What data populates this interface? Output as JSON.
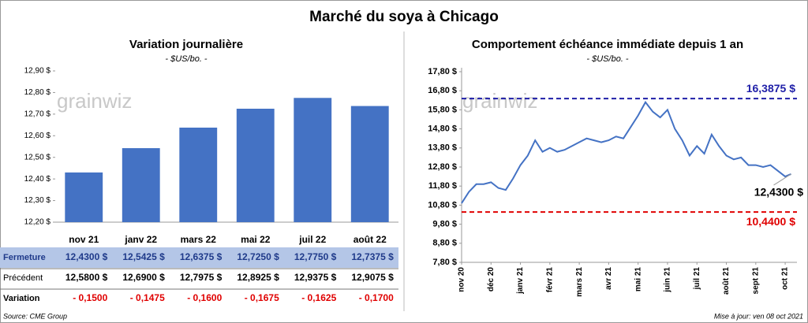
{
  "title": "Marché du soya à Chicago",
  "watermark": "grainwiz",
  "chart_data": [
    {
      "type": "bar",
      "title": "Variation  journalière",
      "subtitle": "- $US/bo. -",
      "categories": [
        "nov 21",
        "janv 22",
        "mars 22",
        "mai 22",
        "juil 22",
        "août 22"
      ],
      "series": [
        {
          "name": "Fermeture",
          "color": "#4472c4",
          "values": [
            12.43,
            12.5425,
            12.6375,
            12.725,
            12.775,
            12.7375
          ],
          "value_labels": [
            "12,4300 $",
            "12,5425 $",
            "12,6375 $",
            "12,7250 $",
            "12,7750 $",
            "12,7375 $"
          ]
        }
      ],
      "ylim": [
        12.2,
        12.9
      ],
      "yticks": [
        {
          "value": 12.2,
          "label": "12,20 $"
        },
        {
          "value": 12.3,
          "label": "12,30 $"
        },
        {
          "value": 12.4,
          "label": "12,40 $"
        },
        {
          "value": 12.5,
          "label": "12,50 $"
        },
        {
          "value": 12.6,
          "label": "12,60 $"
        },
        {
          "value": 12.7,
          "label": "12,70 $"
        },
        {
          "value": 12.8,
          "label": "12,80 $"
        },
        {
          "value": 12.9,
          "label": "12,90 $"
        }
      ]
    },
    {
      "type": "line",
      "title": "Comportement  échéance immédiate depuis 1 an",
      "subtitle": "- $US/bo. -",
      "x": [
        0,
        0.25,
        0.5,
        0.75,
        1,
        1.25,
        1.5,
        1.75,
        2,
        2.25,
        2.5,
        2.75,
        3,
        3.25,
        3.5,
        3.75,
        4,
        4.25,
        4.5,
        4.75,
        5,
        5.25,
        5.5,
        5.75,
        6,
        6.25,
        6.5,
        6.75,
        7,
        7.25,
        7.5,
        7.75,
        8,
        8.25,
        8.5,
        8.75,
        9,
        9.25,
        9.5,
        9.75,
        10,
        10.25,
        10.5,
        10.75,
        11,
        11.2
      ],
      "series": [
        {
          "color": "#4472c4",
          "values": [
            10.9,
            11.5,
            11.9,
            11.9,
            12.0,
            11.7,
            11.6,
            12.2,
            12.9,
            13.4,
            14.2,
            13.6,
            13.8,
            13.6,
            13.7,
            13.9,
            14.1,
            14.3,
            14.2,
            14.1,
            14.2,
            14.4,
            14.3,
            14.9,
            15.5,
            16.2,
            15.7,
            15.4,
            15.8,
            14.8,
            14.2,
            13.4,
            13.9,
            13.5,
            14.5,
            13.9,
            13.4,
            13.2,
            13.3,
            12.9,
            12.9,
            12.8,
            12.9,
            12.6,
            12.3,
            12.43
          ]
        }
      ],
      "xlim": [
        0,
        11.4
      ],
      "xticks": [
        {
          "value": 0,
          "label": "nov 20"
        },
        {
          "value": 1,
          "label": "déc 20"
        },
        {
          "value": 2,
          "label": "janv 21"
        },
        {
          "value": 3,
          "label": "févr 21"
        },
        {
          "value": 4,
          "label": "mars 21"
        },
        {
          "value": 5,
          "label": "avr 21"
        },
        {
          "value": 6,
          "label": "mai 21"
        },
        {
          "value": 7,
          "label": "juin 21"
        },
        {
          "value": 8,
          "label": "juil 21"
        },
        {
          "value": 9,
          "label": "août 21"
        },
        {
          "value": 10,
          "label": "sept 21"
        },
        {
          "value": 11,
          "label": "oct 21"
        }
      ],
      "ylim": [
        7.8,
        17.8
      ],
      "yticks": [
        {
          "value": 7.8,
          "label": "7,80 $"
        },
        {
          "value": 8.8,
          "label": "8,80 $"
        },
        {
          "value": 9.8,
          "label": "9,80 $"
        },
        {
          "value": 10.8,
          "label": "10,80 $"
        },
        {
          "value": 11.8,
          "label": "11,80 $"
        },
        {
          "value": 12.8,
          "label": "12,80 $"
        },
        {
          "value": 13.8,
          "label": "13,80 $"
        },
        {
          "value": 14.8,
          "label": "14,80 $"
        },
        {
          "value": 15.8,
          "label": "15,80 $"
        },
        {
          "value": 16.8,
          "label": "16,80 $"
        },
        {
          "value": 17.8,
          "label": "17,80 $"
        }
      ],
      "reference_lines": [
        {
          "value": 16.3875,
          "label": "16,3875 $",
          "color": "#1f1fa8"
        },
        {
          "value": 10.44,
          "label": "10,4400 $",
          "color": "#e00000"
        }
      ],
      "end_label": {
        "value": 12.43,
        "label": "12,4300 $"
      }
    }
  ],
  "table": {
    "rows": [
      {
        "label": "Précédent",
        "cells": [
          "12,5800 $",
          "12,6900 $",
          "12,7975 $",
          "12,8925 $",
          "12,9375 $",
          "12,9075 $"
        ]
      },
      {
        "label": "Variation",
        "cells": [
          "- 0,1500",
          "- 0,1475",
          "- 0,1600",
          "- 0,1675",
          "- 0,1625",
          "- 0,1700"
        ],
        "color": "#e00000"
      }
    ]
  },
  "source": "Source: CME Group",
  "updated": "Mise à jour: ven 08 oct 2021"
}
